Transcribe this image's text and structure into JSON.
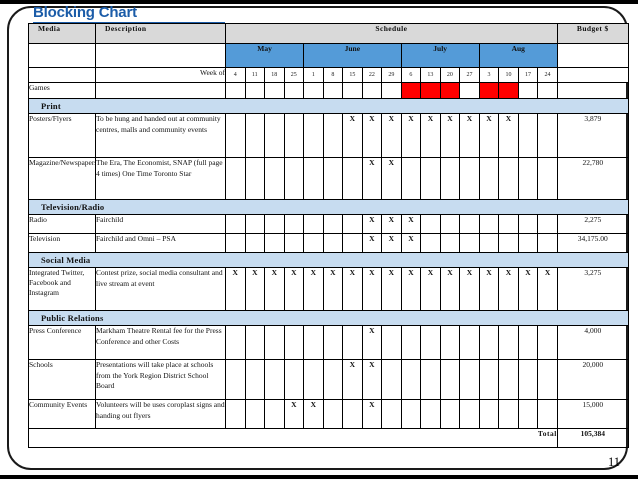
{
  "slide": {
    "title": "Blocking Chart",
    "page_number": "11"
  },
  "colors": {
    "title_blue": "#1b5ca8",
    "month_bar_blue": "#549bd8",
    "section_band_blue": "#c7dcf0",
    "header_gray": "#d9d9d9",
    "schedule_fill_red": "#ff0000"
  },
  "table": {
    "column_headers": {
      "media": "Media",
      "description": "Description",
      "schedule": "Schedule",
      "budget": "Budget $"
    },
    "week_of_label": "Week of",
    "x_symbol": "X",
    "months": [
      {
        "label": "May",
        "weeks": [
          "4",
          "11",
          "18",
          "25"
        ]
      },
      {
        "label": "June",
        "weeks": [
          "1",
          "8",
          "15",
          "22",
          "29"
        ]
      },
      {
        "label": "July",
        "weeks": [
          "6",
          "13",
          "20",
          "27"
        ]
      },
      {
        "label": "Aug",
        "weeks": [
          "3",
          "10",
          "17",
          "24"
        ]
      }
    ],
    "rows": [
      {
        "kind": "media",
        "media": "Games",
        "description": "",
        "x_weeks": [],
        "fill_weeks": [
          9,
          10,
          11,
          13,
          14
        ],
        "budget": ""
      },
      {
        "kind": "section",
        "label": "Print"
      },
      {
        "kind": "media",
        "media": "Posters/Flyers",
        "description": "To be hung and handed out at community centres, malls and community events",
        "x_weeks": [
          6,
          7,
          8,
          9,
          10,
          11,
          12,
          13,
          14
        ],
        "fill_weeks": [],
        "budget": "3,879"
      },
      {
        "kind": "media",
        "media": "Magazine/Newspapers",
        "description": "The Era, The Economist, SNAP (full page 4 times) One Time Toronto Star",
        "x_weeks": [
          7,
          8
        ],
        "fill_weeks": [],
        "budget": "22,780"
      },
      {
        "kind": "section",
        "label": "Television/Radio"
      },
      {
        "kind": "media",
        "media": "Radio",
        "description": "Fairchild",
        "x_weeks": [
          7,
          8,
          9
        ],
        "fill_weeks": [],
        "budget": "2,275"
      },
      {
        "kind": "media",
        "media": "Television",
        "description": "Fairchild and Omni – PSA",
        "x_weeks": [
          7,
          8,
          9
        ],
        "fill_weeks": [],
        "budget": "34,175.00"
      },
      {
        "kind": "section",
        "label": "Social Media"
      },
      {
        "kind": "media",
        "media": "Integrated Twitter, Facebook and Instagram",
        "description": "Contest prize, social media consultant and live stream at event",
        "x_weeks": [
          0,
          1,
          2,
          3,
          4,
          5,
          6,
          7,
          8,
          9,
          10,
          11,
          12,
          13,
          14,
          15,
          16
        ],
        "fill_weeks": [],
        "budget": "3,275"
      },
      {
        "kind": "section",
        "label": "Public Relations"
      },
      {
        "kind": "media",
        "media": "Press Conference",
        "description": "Markham Theatre Rental fee for the Press Conference and other Costs",
        "x_weeks": [
          7
        ],
        "fill_weeks": [],
        "budget": "4,000"
      },
      {
        "kind": "media",
        "media": "Schools",
        "description": "Presentations will take place at schools from the York Region District School Board",
        "x_weeks": [
          6,
          7
        ],
        "fill_weeks": [],
        "budget": "20,000"
      },
      {
        "kind": "media",
        "media": "Community Events",
        "description": "Volunteers will be uses coroplast signs and handing out flyers",
        "x_weeks": [
          3,
          4,
          7
        ],
        "fill_weeks": [],
        "budget": "15,000"
      }
    ],
    "total_label": "Total",
    "total_value": "105,384"
  },
  "chart_data": {
    "type": "table",
    "title": "Blocking Chart",
    "subtype": "media-schedule-gantt",
    "week_columns": [
      "May 4",
      "May 11",
      "May 18",
      "May 25",
      "June 1",
      "June 8",
      "June 15",
      "June 22",
      "June 29",
      "July 6",
      "July 13",
      "July 20",
      "July 27",
      "Aug 3",
      "Aug 10",
      "Aug 17",
      "Aug 24"
    ],
    "rows": [
      {
        "media": "Games",
        "section": null,
        "mark": "red-fill",
        "scheduled_weeks": [
          "July 6",
          "July 13",
          "July 20",
          "Aug 3",
          "Aug 10"
        ],
        "budget": null
      },
      {
        "media": "Posters/Flyers",
        "section": "Print",
        "mark": "X",
        "scheduled_weeks": [
          "June 15",
          "June 22",
          "June 29",
          "July 6",
          "July 13",
          "July 20",
          "July 27",
          "Aug 3",
          "Aug 10"
        ],
        "budget": 3879
      },
      {
        "media": "Magazine/Newspapers",
        "section": "Print",
        "mark": "X",
        "scheduled_weeks": [
          "June 22",
          "June 29"
        ],
        "budget": 22780
      },
      {
        "media": "Radio",
        "section": "Television/Radio",
        "mark": "X",
        "scheduled_weeks": [
          "June 22",
          "June 29",
          "July 6"
        ],
        "budget": 2275
      },
      {
        "media": "Television",
        "section": "Television/Radio",
        "mark": "X",
        "scheduled_weeks": [
          "June 22",
          "June 29",
          "July 6"
        ],
        "budget": 34175.0
      },
      {
        "media": "Integrated Twitter, Facebook and Instagram",
        "section": "Social Media",
        "mark": "X",
        "scheduled_weeks": [
          "May 4",
          "May 11",
          "May 18",
          "May 25",
          "June 1",
          "June 8",
          "June 15",
          "June 22",
          "June 29",
          "July 6",
          "July 13",
          "July 20",
          "July 27",
          "Aug 3",
          "Aug 10",
          "Aug 17",
          "Aug 24"
        ],
        "budget": 3275
      },
      {
        "media": "Press Conference",
        "section": "Public Relations",
        "mark": "X",
        "scheduled_weeks": [
          "June 22"
        ],
        "budget": 4000
      },
      {
        "media": "Schools",
        "section": "Public Relations",
        "mark": "X",
        "scheduled_weeks": [
          "June 15",
          "June 22"
        ],
        "budget": 20000
      },
      {
        "media": "Community Events",
        "section": "Public Relations",
        "mark": "X",
        "scheduled_weeks": [
          "May 25",
          "June 1",
          "June 22"
        ],
        "budget": 15000
      }
    ],
    "total_budget": 105384
  }
}
